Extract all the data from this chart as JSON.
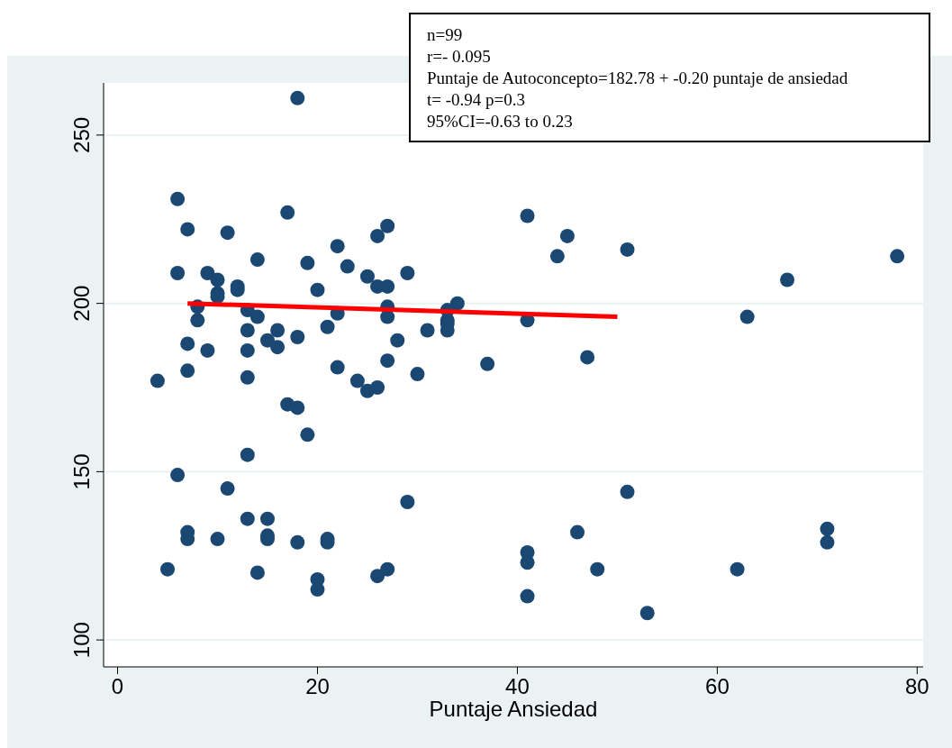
{
  "chart_data": {
    "type": "scatter",
    "xlabel": "Puntaje Ansiedad",
    "annotations": [
      "n=99",
      "r=- 0.095",
      "Puntaje de Autoconcepto=182.78 + -0.20 puntaje de ansiedad",
      "t= -0.94 p=0.3",
      "95%CI=-0.63 to 0.23"
    ],
    "xlim": [
      -1.4,
      80.6
    ],
    "ylim": [
      92,
      265.5
    ],
    "xticks": [
      0,
      20,
      40,
      60,
      80
    ],
    "yticks": [
      100,
      150,
      200,
      250
    ],
    "grid": "y",
    "series": [
      {
        "marker": "circle",
        "color": "#1b4872",
        "x": [
          18,
          6,
          7,
          17,
          11,
          6,
          9,
          10,
          12,
          12,
          10,
          10,
          14,
          19,
          22,
          23,
          25,
          26,
          27,
          26,
          27,
          29,
          20,
          41,
          45,
          44,
          51,
          67,
          78,
          63,
          41,
          34,
          33,
          33,
          33,
          33,
          31,
          27,
          27,
          28,
          27,
          37,
          47,
          30,
          22,
          24,
          25,
          26,
          8,
          8,
          7,
          9,
          7,
          4,
          13,
          13,
          13,
          13,
          14,
          15,
          16,
          16,
          18,
          21,
          22,
          17,
          18,
          19,
          13,
          6,
          11,
          29,
          51,
          13,
          15,
          7,
          7,
          10,
          15,
          15,
          18,
          21,
          21,
          41,
          41,
          46,
          71,
          71,
          5,
          14,
          20,
          20,
          26,
          27,
          48,
          62,
          41,
          53
        ],
        "values": [
          261,
          231,
          222,
          227,
          221,
          209,
          209,
          207,
          205,
          204,
          203,
          202,
          213,
          212,
          217,
          211,
          208,
          220,
          223,
          205,
          205,
          209,
          204,
          226,
          220,
          214,
          216,
          207,
          214,
          196,
          195,
          200,
          198,
          195,
          194,
          192,
          192,
          199,
          196,
          189,
          183,
          182,
          184,
          179,
          181,
          177,
          174,
          175,
          199,
          195,
          188,
          186,
          180,
          177,
          198,
          192,
          186,
          178,
          196,
          189,
          192,
          187,
          190,
          193,
          197,
          170,
          169,
          161,
          155,
          149,
          145,
          141,
          144,
          136,
          136,
          132,
          130,
          130,
          131,
          130,
          129,
          130,
          129,
          126,
          123,
          132,
          133,
          129,
          121,
          120,
          118,
          115,
          119,
          121,
          121,
          121,
          113,
          108
        ]
      },
      {
        "type": "line",
        "color": "#ff0000",
        "x": [
          7,
          50
        ],
        "values": [
          200,
          196
        ]
      }
    ]
  }
}
